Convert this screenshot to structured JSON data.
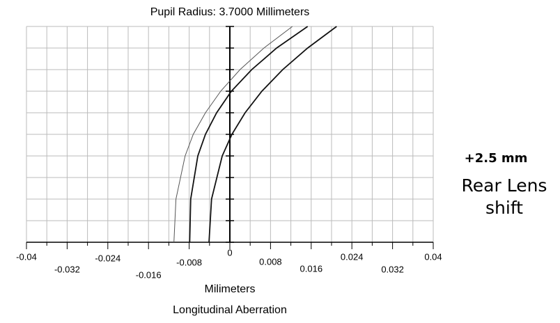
{
  "chart_data": {
    "type": "line",
    "title": "Pupil Radius: 3.7000 Millimeters",
    "xlabel": "Milimeters",
    "subtitle": "Longitudinal Aberration",
    "annotations": [
      "+2.5 mm",
      "Rear Lens",
      "shift"
    ],
    "xlim": [
      -0.04,
      0.04
    ],
    "xticks": [
      -0.04,
      -0.032,
      -0.024,
      -0.016,
      -0.008,
      0,
      0.008,
      0.016,
      0.024,
      0.032,
      0.04
    ],
    "ylim": [
      0,
      1
    ],
    "yticks": [
      0,
      0.1,
      0.2,
      0.3,
      0.4,
      0.5,
      0.6,
      0.7,
      0.8,
      0.9,
      1
    ],
    "grid": true,
    "y": [
      0,
      0.2,
      0.4,
      0.5,
      0.6,
      0.7,
      0.8,
      0.9,
      1
    ],
    "series": [
      {
        "color": "#555555",
        "width": 1,
        "values": [
          -0.011,
          -0.0106,
          -0.0088,
          -0.0072,
          -0.0048,
          -0.0018,
          0.002,
          0.0067,
          0.0123
        ]
      },
      {
        "color": "#111111",
        "width": 1.8,
        "values": [
          -0.0079,
          -0.0077,
          -0.0063,
          -0.0048,
          -0.0026,
          0.0003,
          0.0043,
          0.0092,
          0.0153
        ]
      },
      {
        "color": "#111111",
        "width": 1.8,
        "values": [
          -0.0041,
          -0.0036,
          -0.0015,
          0.0004,
          0.003,
          0.0063,
          0.0104,
          0.0153,
          0.021
        ]
      }
    ]
  }
}
